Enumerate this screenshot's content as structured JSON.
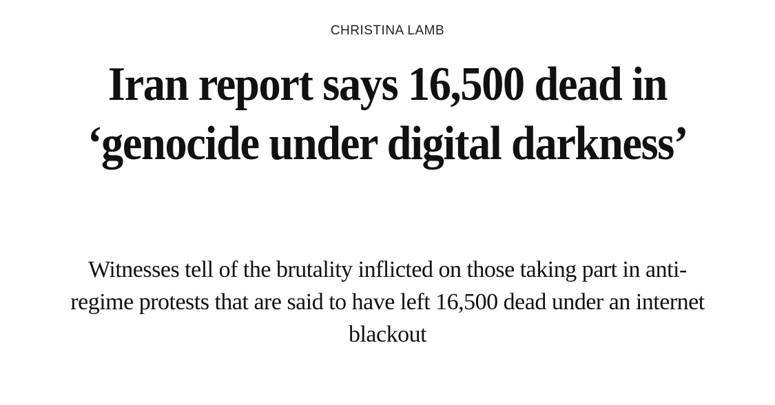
{
  "article": {
    "author": "CHRISTINA LAMB",
    "headline": "Iran report says 16,500 dead in ‘genocide under digital darkness’",
    "standfirst": "Witnesses tell of the brutality inflicted on those taking part in anti-regime protests that are said to have left 16,500 dead under an internet blackout"
  }
}
